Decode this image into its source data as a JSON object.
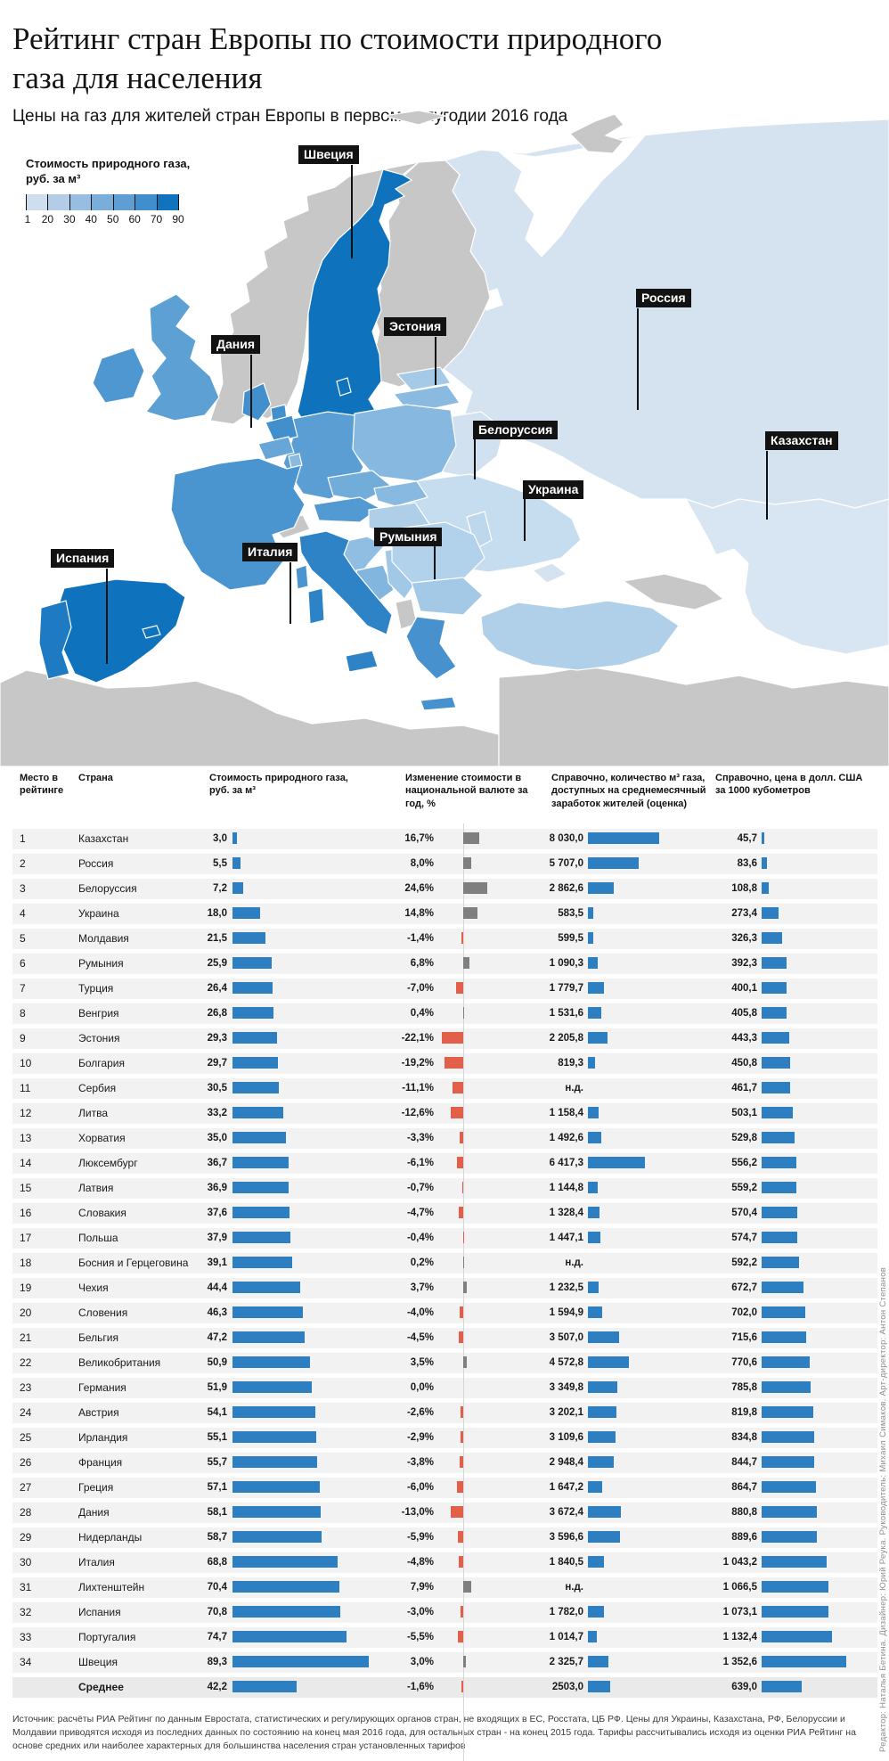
{
  "header": {
    "title": "Рейтинг стран Европы по стоимости природного газа для населения",
    "subtitle": "Цены на газ для жителей стран Европы в первом полугодии 2016 года"
  },
  "legend": {
    "title_line1": "Стоимость природного газа,",
    "title_line2": "руб. за м³",
    "ticks": [
      "1",
      "20",
      "30",
      "40",
      "50",
      "60",
      "70",
      "90"
    ],
    "colors": [
      "#cfdeee",
      "#b3cde8",
      "#97bee1",
      "#7aaeda",
      "#5e9ed3",
      "#418ecc",
      "#1173be"
    ]
  },
  "map": {
    "labels": [
      "Швеция",
      "Дания",
      "Эстония",
      "Белоруссия",
      "Украина",
      "Россия",
      "Казахстан",
      "Румыния",
      "Италия",
      "Испания"
    ],
    "palette": {
      "sea": "#ffffff",
      "non_rated_gray": "#c7c7c7",
      "darkest_blue": "#0e72bd",
      "lightest_blue": "#d8e5f2"
    }
  },
  "table": {
    "headers": {
      "rank": "Место в рейтинге",
      "country": "Страна",
      "cost": "Стоимость природного газа, руб. за м³",
      "change": "Изменение стоимости в национальной валюте за год, %",
      "m3": "Справочно, количество м³ газа, доступных на среднемесячный заработок жителей (оценка)",
      "usd": "Справочно, цена в долл. США за 1000 кубометров"
    },
    "rows": [
      {
        "rank": "1",
        "country": "Казахстан",
        "cost": "3,0",
        "change": "16,7%",
        "m3": "8 030,0",
        "usd": "45,7"
      },
      {
        "rank": "2",
        "country": "Россия",
        "cost": "5,5",
        "change": "8,0%",
        "m3": "5 707,0",
        "usd": "83,6"
      },
      {
        "rank": "3",
        "country": "Белоруссия",
        "cost": "7,2",
        "change": "24,6%",
        "m3": "2 862,6",
        "usd": "108,8"
      },
      {
        "rank": "4",
        "country": "Украина",
        "cost": "18,0",
        "change": "14,8%",
        "m3": "583,5",
        "usd": "273,4"
      },
      {
        "rank": "5",
        "country": "Молдавия",
        "cost": "21,5",
        "change": "-1,4%",
        "m3": "599,5",
        "usd": "326,3"
      },
      {
        "rank": "6",
        "country": "Румыния",
        "cost": "25,9",
        "change": "6,8%",
        "m3": "1 090,3",
        "usd": "392,3"
      },
      {
        "rank": "7",
        "country": "Турция",
        "cost": "26,4",
        "change": "-7,0%",
        "m3": "1 779,7",
        "usd": "400,1"
      },
      {
        "rank": "8",
        "country": "Венгрия",
        "cost": "26,8",
        "change": "0,4%",
        "m3": "1 531,6",
        "usd": "405,8"
      },
      {
        "rank": "9",
        "country": "Эстония",
        "cost": "29,3",
        "change": "-22,1%",
        "m3": "2 205,8",
        "usd": "443,3"
      },
      {
        "rank": "10",
        "country": "Болгария",
        "cost": "29,7",
        "change": "-19,2%",
        "m3": "819,3",
        "usd": "450,8"
      },
      {
        "rank": "11",
        "country": "Сербия",
        "cost": "30,5",
        "change": "-11,1%",
        "m3": "н.д.",
        "usd": "461,7"
      },
      {
        "rank": "12",
        "country": "Литва",
        "cost": "33,2",
        "change": "-12,6%",
        "m3": "1 158,4",
        "usd": "503,1"
      },
      {
        "rank": "13",
        "country": "Хорватия",
        "cost": "35,0",
        "change": "-3,3%",
        "m3": "1 492,6",
        "usd": "529,8"
      },
      {
        "rank": "14",
        "country": "Люксембург",
        "cost": "36,7",
        "change": "-6,1%",
        "m3": "6 417,3",
        "usd": "556,2"
      },
      {
        "rank": "15",
        "country": "Латвия",
        "cost": "36,9",
        "change": "-0,7%",
        "m3": "1 144,8",
        "usd": "559,2"
      },
      {
        "rank": "16",
        "country": "Словакия",
        "cost": "37,6",
        "change": "-4,7%",
        "m3": "1 328,4",
        "usd": "570,4"
      },
      {
        "rank": "17",
        "country": "Польша",
        "cost": "37,9",
        "change": "-0,4%",
        "m3": "1 447,1",
        "usd": "574,7"
      },
      {
        "rank": "18",
        "country": "Босния и Герцеговина",
        "cost": "39,1",
        "change": "0,2%",
        "m3": "н.д.",
        "usd": "592,2"
      },
      {
        "rank": "19",
        "country": "Чехия",
        "cost": "44,4",
        "change": "3,7%",
        "m3": "1 232,5",
        "usd": "672,7"
      },
      {
        "rank": "20",
        "country": "Словения",
        "cost": "46,3",
        "change": "-4,0%",
        "m3": "1 594,9",
        "usd": "702,0"
      },
      {
        "rank": "21",
        "country": "Бельгия",
        "cost": "47,2",
        "change": "-4,5%",
        "m3": "3 507,0",
        "usd": "715,6"
      },
      {
        "rank": "22",
        "country": "Великобритания",
        "cost": "50,9",
        "change": "3,5%",
        "m3": "4 572,8",
        "usd": "770,6"
      },
      {
        "rank": "23",
        "country": "Германия",
        "cost": "51,9",
        "change": "0,0%",
        "m3": "3 349,8",
        "usd": "785,8"
      },
      {
        "rank": "24",
        "country": "Австрия",
        "cost": "54,1",
        "change": "-2,6%",
        "m3": "3 202,1",
        "usd": "819,8"
      },
      {
        "rank": "25",
        "country": "Ирландия",
        "cost": "55,1",
        "change": "-2,9%",
        "m3": "3 109,6",
        "usd": "834,8"
      },
      {
        "rank": "26",
        "country": "Франция",
        "cost": "55,7",
        "change": "-3,8%",
        "m3": "2 948,4",
        "usd": "844,7"
      },
      {
        "rank": "27",
        "country": "Греция",
        "cost": "57,1",
        "change": "-6,0%",
        "m3": "1 647,2",
        "usd": "864,7"
      },
      {
        "rank": "28",
        "country": "Дания",
        "cost": "58,1",
        "change": "-13,0%",
        "m3": "3 672,4",
        "usd": "880,8"
      },
      {
        "rank": "29",
        "country": "Нидерланды",
        "cost": "58,7",
        "change": "-5,9%",
        "m3": "3 596,6",
        "usd": "889,6"
      },
      {
        "rank": "30",
        "country": "Италия",
        "cost": "68,8",
        "change": "-4,8%",
        "m3": "1 840,5",
        "usd": "1 043,2"
      },
      {
        "rank": "31",
        "country": "Лихтенштейн",
        "cost": "70,4",
        "change": "7,9%",
        "m3": "н.д.",
        "usd": "1 066,5"
      },
      {
        "rank": "32",
        "country": "Испания",
        "cost": "70,8",
        "change": "-3,0%",
        "m3": "1 782,0",
        "usd": "1 073,1"
      },
      {
        "rank": "33",
        "country": "Португалия",
        "cost": "74,7",
        "change": "-5,5%",
        "m3": "1 014,7",
        "usd": "1 132,4"
      },
      {
        "rank": "34",
        "country": "Швеция",
        "cost": "89,3",
        "change": "3,0%",
        "m3": "2 325,7",
        "usd": "1 352,6"
      }
    ],
    "average": {
      "label": "Среднее",
      "cost": "42,2",
      "change": "-1,6%",
      "m3": "2503,0",
      "usd": "639,0"
    }
  },
  "chart_data": {
    "type": "bar",
    "title": "Рейтинг стран Европы по стоимости природного газа для населения",
    "categories": [
      "Казахстан",
      "Россия",
      "Белоруссия",
      "Украина",
      "Молдавия",
      "Румыния",
      "Турция",
      "Венгрия",
      "Эстония",
      "Болгария",
      "Сербия",
      "Литва",
      "Хорватия",
      "Люксембург",
      "Латвия",
      "Словакия",
      "Польша",
      "Босния и Герцеговина",
      "Чехия",
      "Словения",
      "Бельгия",
      "Великобритания",
      "Германия",
      "Австрия",
      "Ирландия",
      "Франция",
      "Греция",
      "Дания",
      "Нидерланды",
      "Италия",
      "Лихтенштейн",
      "Испания",
      "Португалия",
      "Швеция"
    ],
    "series": [
      {
        "name": "Стоимость природного газа, руб. за м³",
        "values": [
          3.0,
          5.5,
          7.2,
          18.0,
          21.5,
          25.9,
          26.4,
          26.8,
          29.3,
          29.7,
          30.5,
          33.2,
          35.0,
          36.7,
          36.9,
          37.6,
          37.9,
          39.1,
          44.4,
          46.3,
          47.2,
          50.9,
          51.9,
          54.1,
          55.1,
          55.7,
          57.1,
          58.1,
          58.7,
          68.8,
          70.4,
          70.8,
          74.7,
          89.3
        ]
      },
      {
        "name": "Изменение стоимости в национальной валюте за год, %",
        "values": [
          16.7,
          8.0,
          24.6,
          14.8,
          -1.4,
          6.8,
          -7.0,
          0.4,
          -22.1,
          -19.2,
          -11.1,
          -12.6,
          -3.3,
          -6.1,
          -0.7,
          -4.7,
          -0.4,
          0.2,
          3.7,
          -4.0,
          -4.5,
          3.5,
          0.0,
          -2.6,
          -2.9,
          -3.8,
          -6.0,
          -13.0,
          -5.9,
          -4.8,
          7.9,
          -3.0,
          -5.5,
          3.0
        ]
      },
      {
        "name": "Справочно, количество м³ газа, доступных на среднемесячный заработок жителей (оценка)",
        "values": [
          8030.0,
          5707.0,
          2862.6,
          583.5,
          599.5,
          1090.3,
          1779.7,
          1531.6,
          2205.8,
          819.3,
          null,
          1158.4,
          1492.6,
          6417.3,
          1144.8,
          1328.4,
          1447.1,
          null,
          1232.5,
          1594.9,
          3507.0,
          4572.8,
          3349.8,
          3202.1,
          3109.6,
          2948.4,
          1647.2,
          3672.4,
          3596.6,
          1840.5,
          null,
          1782.0,
          1014.7,
          2325.7
        ]
      },
      {
        "name": "Справочно, цена в долл. США за 1000 кубометров",
        "values": [
          45.7,
          83.6,
          108.8,
          273.4,
          326.3,
          392.3,
          400.1,
          405.8,
          443.3,
          450.8,
          461.7,
          503.1,
          529.8,
          556.2,
          559.2,
          570.4,
          574.7,
          592.2,
          672.7,
          702.0,
          715.6,
          770.6,
          785.8,
          819.8,
          834.8,
          844.7,
          864.7,
          880.8,
          889.6,
          1043.2,
          1066.5,
          1073.1,
          1132.4,
          1352.6
        ]
      }
    ],
    "average": {
      "cost": 42.2,
      "change": -1.6,
      "m3": 2503.0,
      "usd": 639.0
    },
    "legend_scale": {
      "unit": "руб. за м³",
      "ticks": [
        1,
        20,
        30,
        40,
        50,
        60,
        70,
        90
      ]
    }
  },
  "footer": {
    "source": "Источник: расчёты РИА Рейтинг по данным Евростата, статистических и регулирующих органов стран, не входящих в ЕС, Росстата, ЦБ РФ. Цены для Украины, Казахстана, РФ, Белоруссии и Молдавии приводятся исходя из последних данных по состоянию на конец мая 2016 года, для остальных стран - на конец 2015 года. Тарифы рассчитывались исходя из оценки РИА Рейтинг на основе средних или наиболее характерных для большинства населения стран установленных тарифов",
    "credits": "Редактор: Наталья Бетина. Дизайнер: Юрий Реука. Руководитель: Михаил Симаков. Арт-директор: Антон Степанов"
  }
}
